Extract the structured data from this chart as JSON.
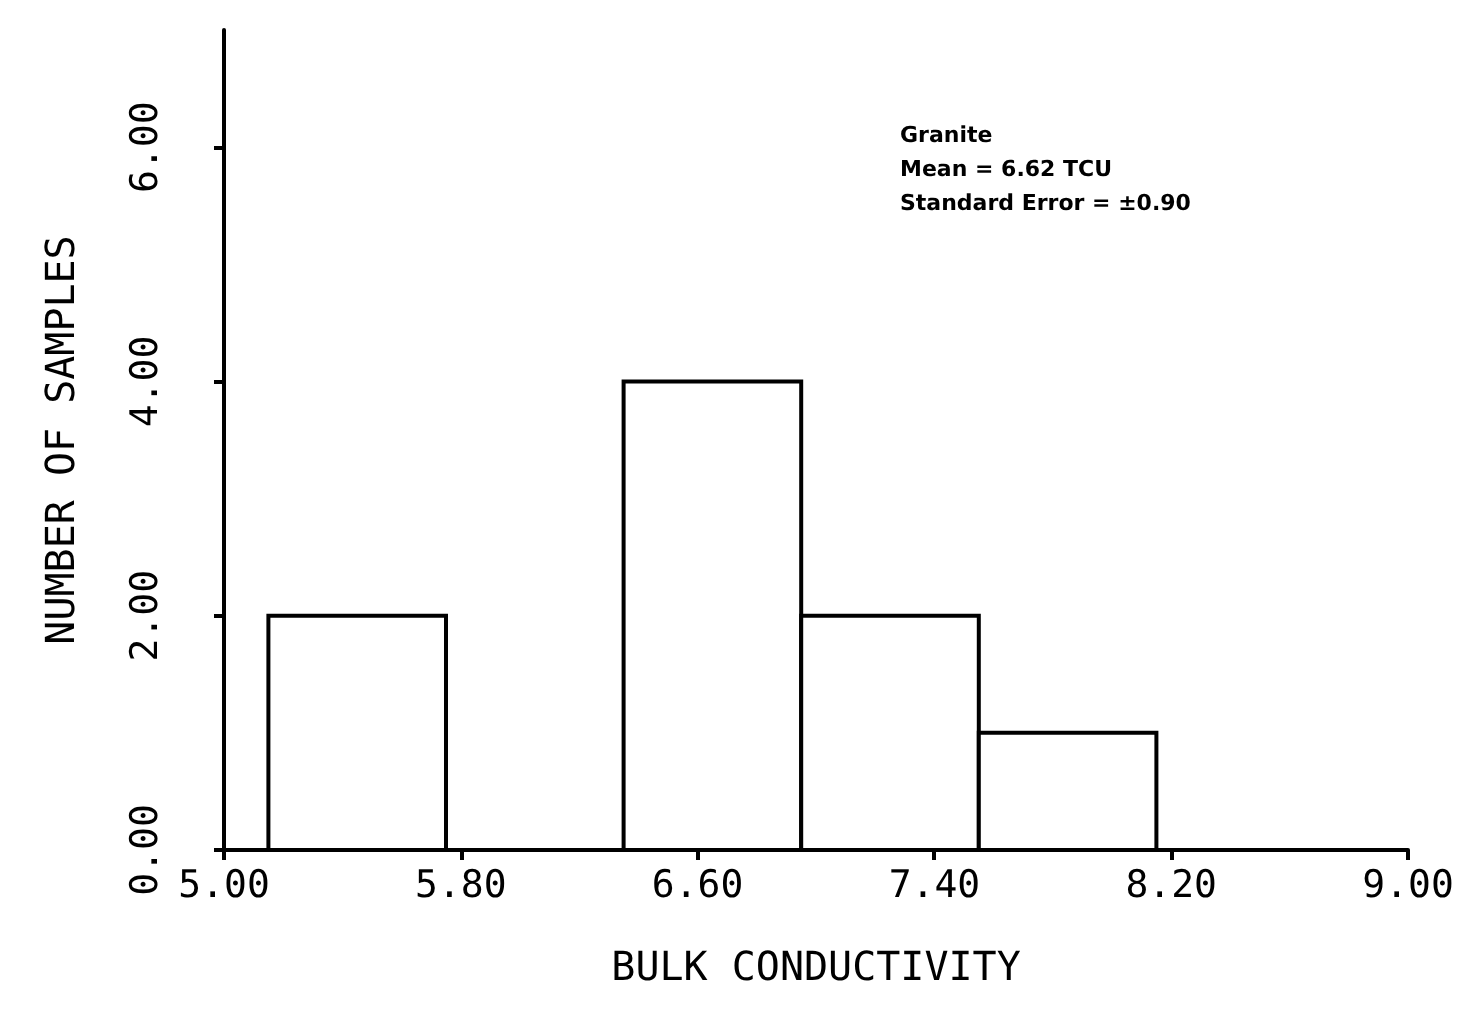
{
  "chart_data": {
    "type": "histogram",
    "xlabel": "BULK CONDUCTIVITY",
    "ylabel": "NUMBER OF SAMPLES",
    "bins": [
      5.15,
      5.75,
      6.35,
      6.95,
      7.55,
      8.15
    ],
    "values": [
      2,
      0,
      4,
      2,
      1
    ],
    "color": "#ffffff",
    "xlim": [
      5,
      9
    ],
    "xticks": [
      {
        "value": 5,
        "label": "5.00"
      },
      {
        "value": 5.8,
        "label": "5.80"
      },
      {
        "value": 6.6,
        "label": "6.60"
      },
      {
        "value": 7.4,
        "label": "7.40"
      },
      {
        "value": 8.2,
        "label": "8.20"
      },
      {
        "value": 9,
        "label": "9.00"
      }
    ],
    "ylim": [
      0,
      7
    ],
    "yticks": [
      {
        "value": 0,
        "label": "0.00"
      },
      {
        "value": 2,
        "label": "2.00"
      },
      {
        "value": 4,
        "label": "4.00"
      },
      {
        "value": 6,
        "label": "6.00"
      }
    ],
    "grid": false,
    "annotations": [
      "Granite",
      "Mean = 6.62 TCU",
      "Standard Error = ±0.90"
    ]
  }
}
